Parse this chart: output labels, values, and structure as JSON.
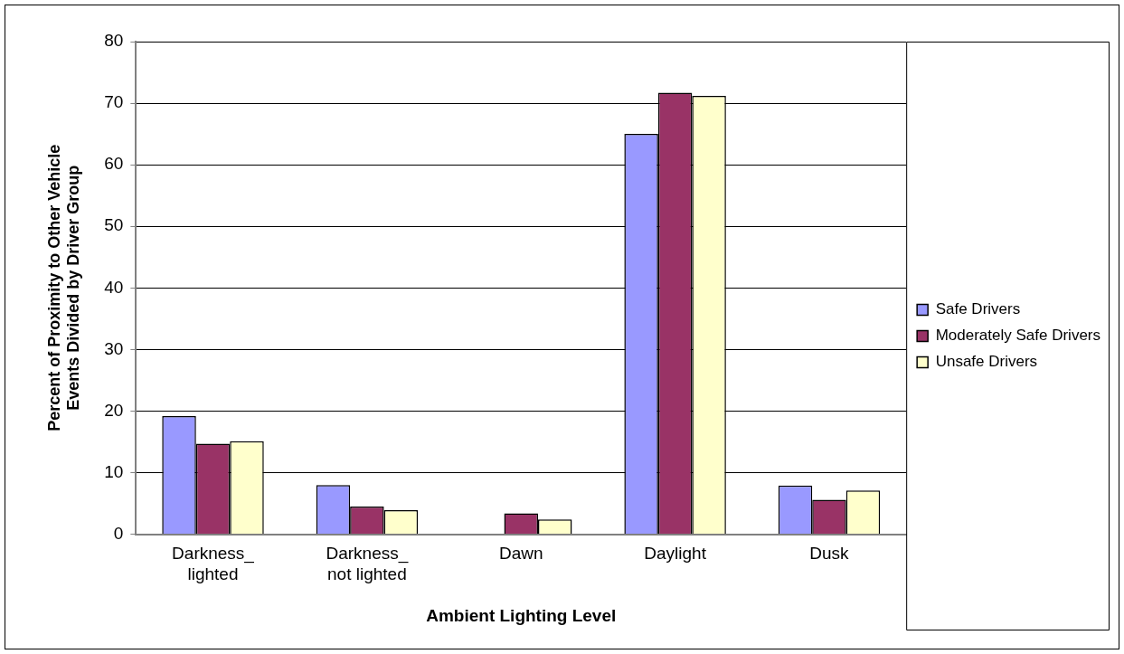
{
  "chart_data": {
    "type": "bar",
    "xlabel": "Ambient Lighting Level",
    "ylabel": "Percent of Proximity to Other Vehicle Events Divided by Driver Group",
    "categories": [
      "Darkness_ lighted",
      "Darkness_ not lighted",
      "Dawn",
      "Daylight",
      "Dusk"
    ],
    "series": [
      {
        "name": "Safe Drivers",
        "color": "#9999ff",
        "values": [
          19.2,
          8.0,
          0,
          65,
          7.9
        ]
      },
      {
        "name": "Moderately Safe Drivers",
        "color": "#993366",
        "values": [
          14.7,
          4.5,
          3.4,
          71.7,
          5.6
        ]
      },
      {
        "name": "Unsafe Drivers",
        "color": "#ffffcc",
        "values": [
          15.1,
          3.9,
          2.4,
          71.2,
          7.1
        ]
      }
    ],
    "ylim": [
      0,
      80
    ],
    "yticks": [
      0,
      10,
      20,
      30,
      40,
      50,
      60,
      70,
      80
    ],
    "grid": "y",
    "legend": "right"
  }
}
